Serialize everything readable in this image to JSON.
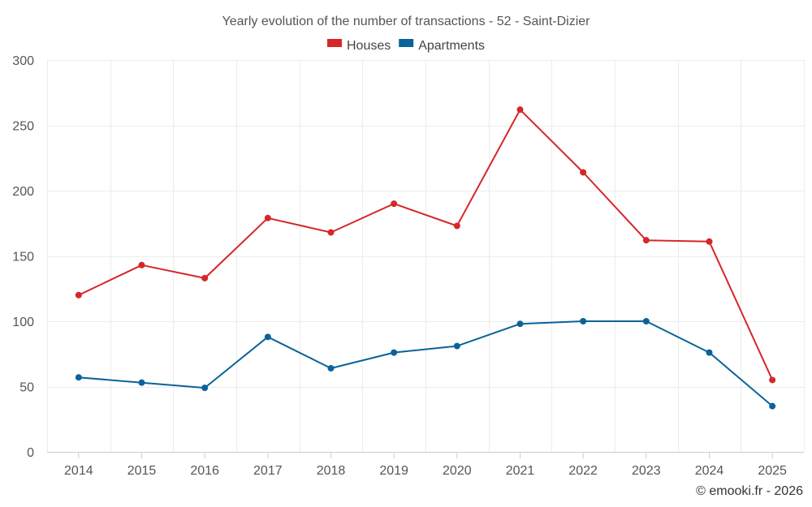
{
  "chart_data": {
    "type": "line",
    "title": "Yearly evolution of the number of transactions - 52 - Saint-Dizier",
    "categories": [
      "2014",
      "2015",
      "2016",
      "2017",
      "2018",
      "2019",
      "2020",
      "2021",
      "2022",
      "2023",
      "2024",
      "2025"
    ],
    "series": [
      {
        "name": "Houses",
        "color": "#d62728",
        "values": [
          120,
          143,
          133,
          179,
          168,
          190,
          173,
          262,
          214,
          162,
          161,
          55
        ]
      },
      {
        "name": "Apartments",
        "color": "#0a6399",
        "values": [
          57,
          53,
          49,
          88,
          64,
          76,
          81,
          98,
          100,
          100,
          76,
          35
        ]
      }
    ],
    "ylim": [
      0,
      300
    ],
    "yticks": [
      0,
      50,
      100,
      150,
      200,
      250,
      300
    ],
    "grid": true,
    "legend": "top-center",
    "credit": "© emooki.fr - 2026"
  }
}
